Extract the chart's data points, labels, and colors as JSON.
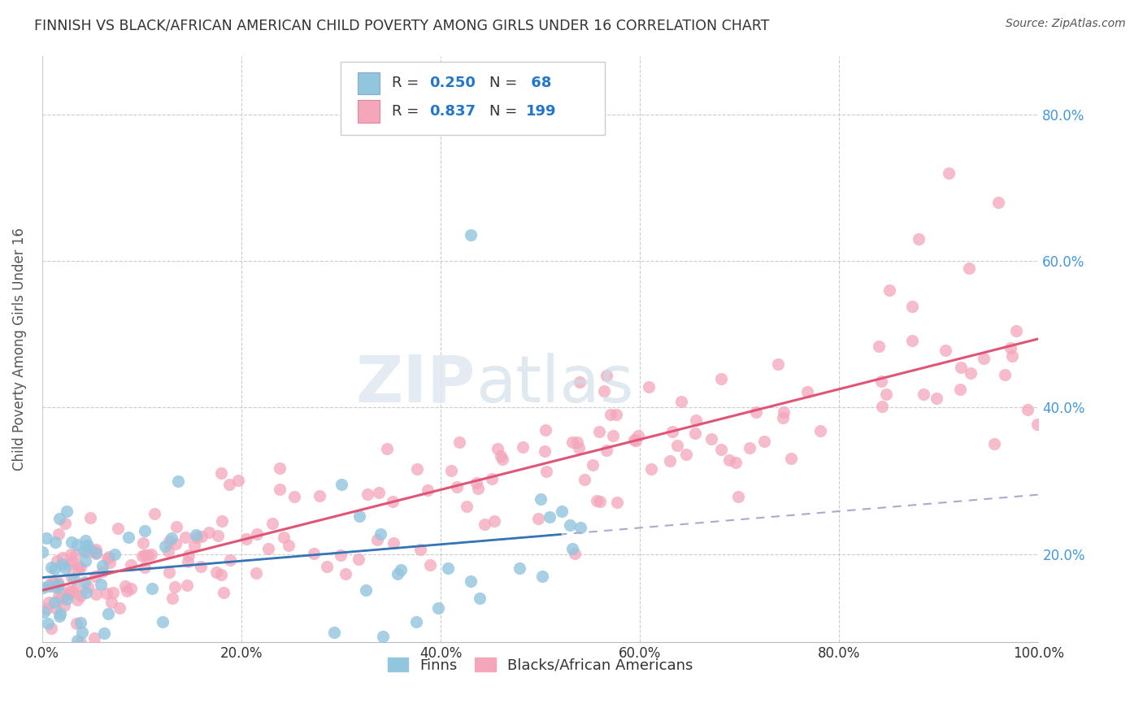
{
  "title": "FINNISH VS BLACK/AFRICAN AMERICAN CHILD POVERTY AMONG GIRLS UNDER 16 CORRELATION CHART",
  "source": "Source: ZipAtlas.com",
  "ylabel": "Child Poverty Among Girls Under 16",
  "xlim": [
    0.0,
    1.0
  ],
  "ylim": [
    0.08,
    0.88
  ],
  "xticks": [
    0.0,
    0.2,
    0.4,
    0.6,
    0.8,
    1.0
  ],
  "xticklabels": [
    "0.0%",
    "20.0%",
    "40.0%",
    "60.0%",
    "80.0%",
    "100.0%"
  ],
  "yticks": [
    0.2,
    0.4,
    0.6,
    0.8
  ],
  "yticklabels": [
    "20.0%",
    "40.0%",
    "60.0%",
    "80.0%"
  ],
  "legend_R1": "0.250",
  "legend_N1": "68",
  "legend_R2": "0.837",
  "legend_N2": "199",
  "legend_labels": [
    "Finns",
    "Blacks/African Americans"
  ],
  "color_finn": "#92c5de",
  "color_black": "#f4a6bb",
  "trendline_finn_color": "#3575b5",
  "trendline_black_color": "#e05575",
  "trendline_gray_color": "#aaaacc",
  "background_color": "#ffffff",
  "grid_color": "#cccccc",
  "ytick_color": "#4499dd",
  "xtick_color": "#333333"
}
